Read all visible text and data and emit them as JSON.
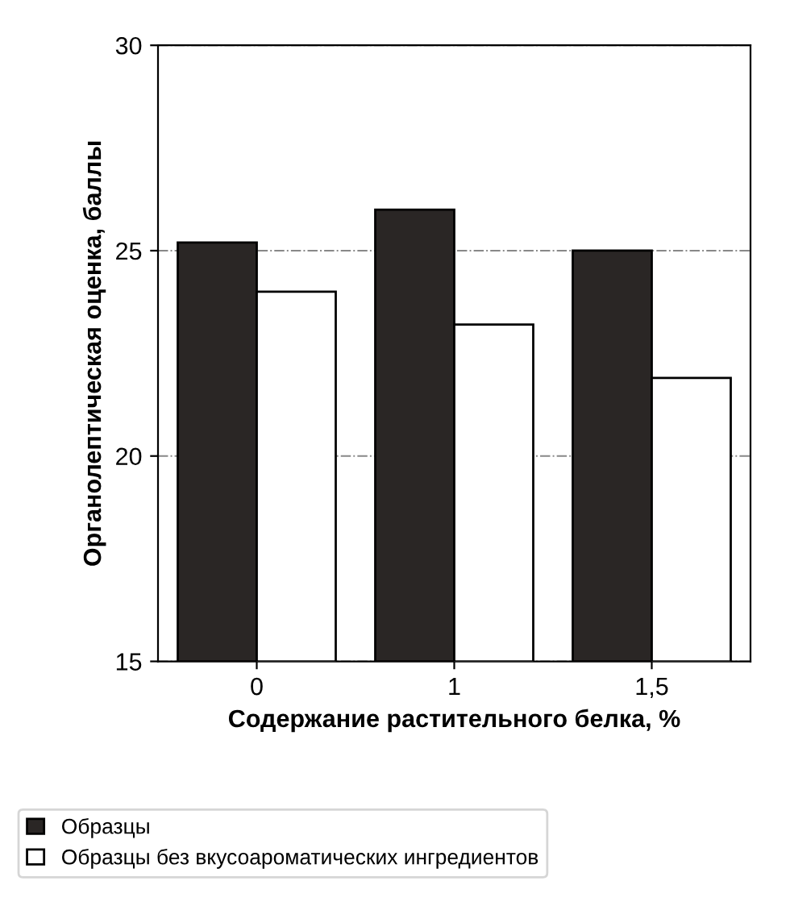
{
  "chart_data": {
    "type": "bar",
    "xlabel": "Содержание растительного белка, %",
    "ylabel": "Органолептическая оценка, баллы",
    "categories": [
      "0",
      "1",
      "1,5"
    ],
    "series": [
      {
        "name": "Образцы",
        "color": "#2a2625",
        "values": [
          25.2,
          26.0,
          25.0
        ]
      },
      {
        "name": "Образцы без вкусоароматических ингредиентов",
        "color": "#ffffff",
        "values": [
          24.0,
          23.2,
          21.9
        ]
      }
    ],
    "ylim": [
      15,
      30
    ],
    "yticks": [
      15,
      20,
      25,
      30
    ],
    "grid": "y",
    "legend": "bottom"
  }
}
